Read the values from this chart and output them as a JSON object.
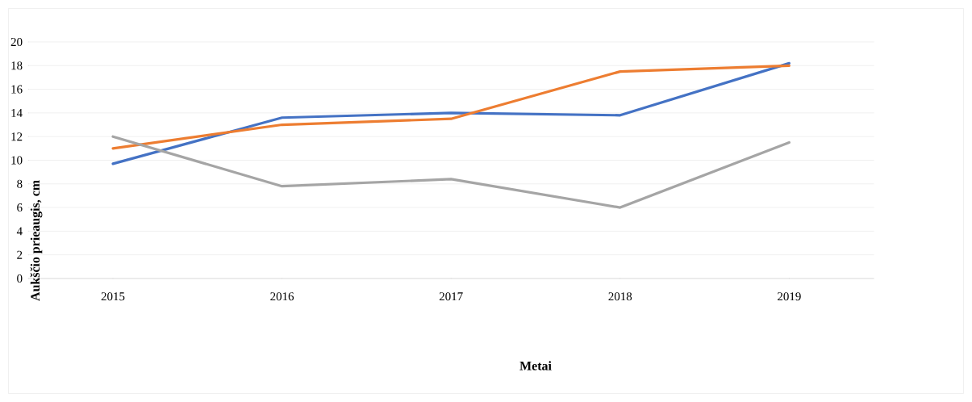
{
  "chart_data": {
    "type": "line",
    "xlabel": "Metai",
    "ylabel": "Aukščio prieaugis, cm",
    "categories": [
      "2015",
      "2016",
      "2017",
      "2018",
      "2019"
    ],
    "series": [
      {
        "color": "#4472c4",
        "values": [
          9.7,
          13.6,
          14.0,
          13.8,
          18.2
        ]
      },
      {
        "color": "#ed7d31",
        "values": [
          11.0,
          13.0,
          13.5,
          17.5,
          18.0
        ]
      },
      {
        "color": "#a5a5a5",
        "values": [
          12.0,
          7.8,
          8.4,
          6.0,
          11.5
        ]
      }
    ],
    "ylim": [
      0,
      20
    ],
    "yticks": [
      0,
      2,
      4,
      6,
      8,
      10,
      12,
      14,
      16,
      18,
      20
    ],
    "grid": "y",
    "marker": "none",
    "line_style": "solid"
  }
}
